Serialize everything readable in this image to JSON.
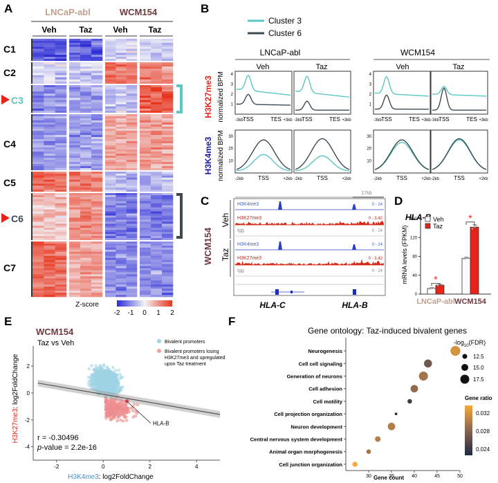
{
  "panels": {
    "A": {
      "letter": "A",
      "groups": [
        "LNCaP-abl",
        "WCM154"
      ],
      "subgroups": [
        "Veh",
        "Taz",
        "Veh",
        "Taz"
      ],
      "clusters": [
        "C1",
        "C2",
        "C3",
        "C4",
        "C5",
        "C6",
        "C7"
      ],
      "zscore_label": "Z-score",
      "zscore_ticks": [
        "-2",
        "-1",
        "0",
        "1",
        "2"
      ]
    },
    "B": {
      "letter": "B",
      "legend": [
        "Cluster 3",
        "Cluster 6"
      ],
      "cells": [
        "LNCaP-abl",
        "WCM154"
      ],
      "treatments": [
        "Veh",
        "Taz",
        "Veh",
        "Taz"
      ],
      "row_marks": [
        "H3K27me3",
        "H3K4me3"
      ],
      "ylabel": "normalized BPM",
      "k27_ticks": [
        "1",
        "2",
        "3",
        "4"
      ],
      "k4_ticks": [
        "10",
        "20",
        "30"
      ],
      "k27_x": [
        "-3kb",
        "TSS",
        "TES",
        "+3kb"
      ],
      "k4_x": [
        "-2kb",
        "TSS",
        "+2kb"
      ]
    },
    "C": {
      "letter": "C",
      "sample": "WCM154",
      "conditions": [
        "Veh",
        "Taz"
      ],
      "scale_label": "17kb",
      "tracks": [
        "H3K4me3",
        "H3K27me3",
        "Igg"
      ],
      "ranges": [
        "0 - 24",
        "0 - 3.42",
        "0 - 24"
      ],
      "genes": [
        "HLA-C",
        "HLA-B"
      ]
    },
    "D": {
      "letter": "D",
      "title": "HLA-B",
      "ylabel": "mRNA levels (FPKM)",
      "legend": [
        "Veh",
        "Taz"
      ],
      "sig": "*"
    },
    "E": {
      "letter": "E",
      "title": "WCM154",
      "subtitle": "Taz vs Veh",
      "legend": [
        "Bivalent promoters",
        "Bivalent promoters losing H3K27me3 and upregulated upon Taz treatment"
      ],
      "xlabel_mark": "H3K4me3",
      "xlabel_rest": ": log2FoldChange",
      "ylabel_mark": "H3K27me3",
      "ylabel_rest": ": log2FoldChange",
      "annotation": "HLA-B",
      "stat_r": "r = -0.30496",
      "stat_p_label": "p",
      "stat_p_value": "-value = 2.2e-16"
    },
    "F": {
      "letter": "F",
      "title": "Gene ontology: Taz-induced bivalent genes",
      "xlabel": "Gene count",
      "size_legend_title": "-log",
      "size_legend_sub": "10",
      "size_legend_suffix": "(FDR)",
      "size_legend_values": [
        "12.5",
        "15.0",
        "17.5"
      ],
      "color_legend_title": "Gene ratio",
      "color_legend_values": [
        "0.032",
        "0.028",
        "0.024"
      ]
    }
  },
  "chart_data": [
    {
      "type": "heatmap",
      "panel": "A",
      "rows": [
        "C1",
        "C2",
        "C3",
        "C4",
        "C5",
        "C6",
        "C7"
      ],
      "columns": [
        "LNCaP-abl Veh",
        "LNCaP-abl Taz",
        "WCM154 Veh",
        "WCM154 Taz"
      ],
      "values": [
        [
          -1.6,
          -1.4,
          -0.3,
          -0.4
        ],
        [
          -0.3,
          -0.4,
          1.3,
          1.1
        ],
        [
          -1.0,
          -0.9,
          -0.4,
          1.6
        ],
        [
          -0.9,
          -0.9,
          0.8,
          0.8
        ],
        [
          1.4,
          1.3,
          -0.6,
          -0.6
        ],
        [
          0.5,
          1.0,
          -1.1,
          -1.1
        ],
        [
          1.4,
          0.8,
          -1.0,
          -1.0
        ]
      ],
      "zlim": [
        -2,
        2
      ],
      "colors": {
        "low": "#2a2ad6",
        "mid": "#f2f2f7",
        "high": "#e8341c"
      }
    },
    {
      "type": "line",
      "panel": "B",
      "mark": "H3K27me3",
      "ylabel": "normalized BPM",
      "ylim": [
        0,
        4
      ],
      "x": [
        "-3kb",
        "TSS",
        "TES",
        "+3kb"
      ],
      "series": [
        {
          "name": "Cluster 3",
          "panels": [
            "LNCaP-abl Veh",
            "LNCaP-abl Taz",
            "WCM154 Veh",
            "WCM154 Taz"
          ],
          "baseline": [
            2.5,
            2.3,
            2.1,
            2.0
          ],
          "peak": [
            4.0,
            3.9,
            3.8,
            2.8
          ],
          "end": [
            1.9,
            1.7,
            1.8,
            1.8
          ],
          "color": "#5bc6c2"
        },
        {
          "name": "Cluster 6",
          "panels": [
            "LNCaP-abl Veh",
            "LNCaP-abl Taz",
            "WCM154 Veh",
            "WCM154 Taz"
          ],
          "baseline": [
            1.0,
            0.4,
            0.5,
            0.4
          ],
          "peak": [
            2.0,
            1.3,
            1.9,
            2.6
          ],
          "end": [
            0.9,
            0.4,
            0.5,
            0.4
          ],
          "color": "#3d4a52"
        }
      ]
    },
    {
      "type": "line",
      "panel": "B",
      "mark": "H3K4me3",
      "ylabel": "normalized BPM",
      "ylim": [
        0,
        35
      ],
      "x": [
        "-2kb",
        "TSS",
        "+2kb"
      ],
      "series": [
        {
          "name": "Cluster 3",
          "panels": [
            "LNCaP-abl Veh",
            "LNCaP-abl Taz",
            "WCM154 Veh",
            "WCM154 Taz"
          ],
          "peak": [
            15,
            14,
            25,
            27
          ],
          "color": "#5bc6c2"
        },
        {
          "name": "Cluster 6",
          "panels": [
            "LNCaP-abl Veh",
            "LNCaP-abl Taz",
            "WCM154 Veh",
            "WCM154 Taz"
          ],
          "peak": [
            27,
            28,
            27,
            28
          ],
          "color": "#3d4a52"
        }
      ]
    },
    {
      "type": "bar",
      "panel": "D",
      "title": "HLA-B",
      "categories": [
        "LNCaP-abl",
        "WCM154"
      ],
      "series": [
        {
          "name": "Veh",
          "values": [
            12,
            76
          ],
          "errors": [
            1.5,
            2
          ],
          "color": "#ffffff"
        },
        {
          "name": "Taz",
          "values": [
            19,
            142
          ],
          "errors": [
            1.5,
            5
          ],
          "color": "#e8231a"
        }
      ],
      "ylabel": "mRNA levels (FPKM)",
      "ylim": [
        0,
        160
      ],
      "yticks": [
        0,
        40,
        80,
        120,
        160
      ]
    },
    {
      "type": "scatter",
      "panel": "E",
      "title": "WCM154",
      "xlabel": "H3K4me3: log2FoldChange",
      "ylabel": "H3K27me3: log2FoldChange",
      "xlim": [
        -3,
        5
      ],
      "ylim": [
        -5,
        3.5
      ],
      "xticks": [
        -2,
        0,
        2,
        4
      ],
      "yticks": [
        -4,
        -2,
        0,
        2
      ],
      "fit": {
        "slope": -0.3,
        "intercept": -0.1
      },
      "highlight": {
        "label": "HLA-B",
        "x": 1.0,
        "y": -0.6
      },
      "r": -0.30496,
      "p_value": "2.2e-16"
    },
    {
      "type": "scatter",
      "panel": "F",
      "title": "Gene ontology: Taz-induced bivalent genes",
      "categories": [
        "Neurogenesis",
        "Cell cell signaling",
        "Generation of neurons",
        "Cell adhesion",
        "Cell motility",
        "Cell projection organization",
        "Neuron development",
        "Central nervous system development",
        "Animal organ morphogenesis",
        "Cell junction organization"
      ],
      "gene_count": [
        49,
        43,
        42,
        40,
        39,
        36,
        35,
        32,
        30,
        27
      ],
      "gene_ratio": [
        0.033,
        0.027,
        0.03,
        0.029,
        0.024,
        0.022,
        0.031,
        0.031,
        0.03,
        0.035
      ],
      "neg_log10_fdr": [
        17.5,
        15.5,
        16.5,
        15.0,
        12.0,
        10.0,
        15.0,
        13.0,
        12.0,
        12.5
      ],
      "xlabel": "Gene count",
      "xlim": [
        25,
        50
      ],
      "xticks": [
        30,
        35,
        40,
        45,
        50
      ]
    }
  ]
}
